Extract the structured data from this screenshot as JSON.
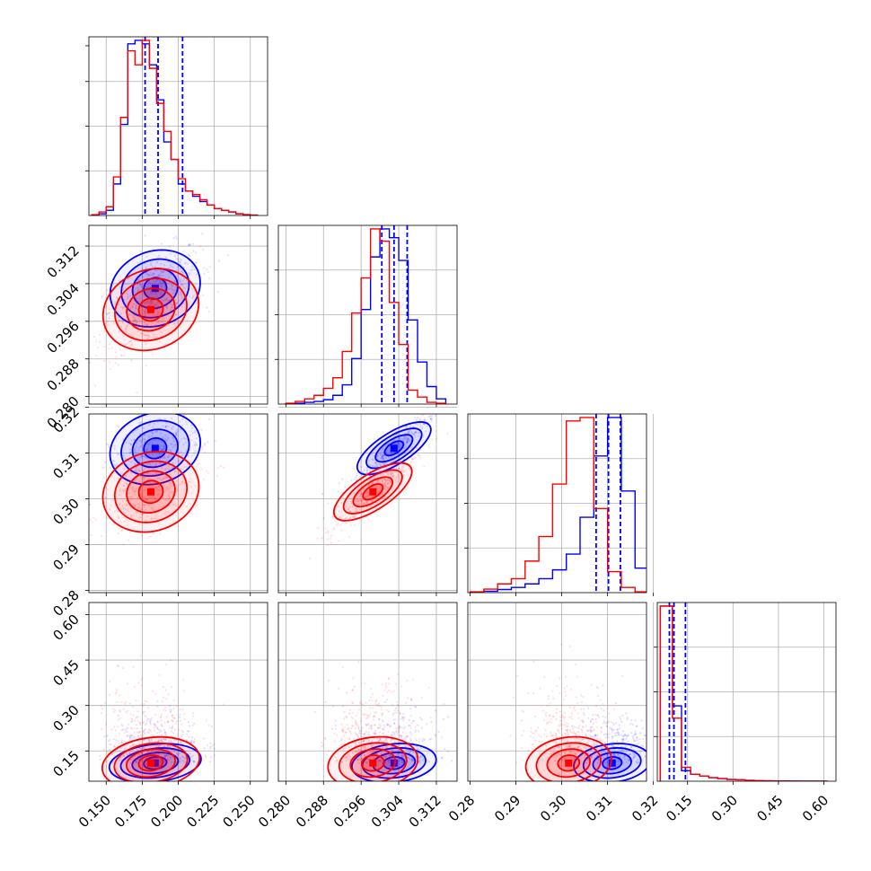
{
  "chart_data": {
    "type": "scatter",
    "title": "",
    "parameters": [
      {
        "ticks": [
          0.15,
          0.175,
          0.2,
          0.225,
          0.25
        ],
        "tick_labels": [
          "0.150",
          "0.175",
          "0.200",
          "0.225",
          "0.250"
        ],
        "range": [
          0.138,
          0.262
        ]
      },
      {
        "ticks": [
          0.28,
          0.288,
          0.296,
          0.304,
          0.312
        ],
        "tick_labels": [
          "0.280",
          "0.288",
          "0.296",
          "0.304",
          "0.312"
        ],
        "range": [
          0.2784,
          0.3164
        ]
      },
      {
        "ticks": [
          0.28,
          0.29,
          0.3,
          0.31,
          0.32
        ],
        "tick_labels": [
          "0.28",
          "0.29",
          "0.30",
          "0.31",
          "0.32"
        ],
        "range": [
          0.2795,
          0.3185
        ]
      },
      {
        "ticks": [
          0.15,
          0.3,
          0.45,
          0.6
        ],
        "tick_labels": [
          "0.15",
          "0.30",
          "0.45",
          "0.60"
        ],
        "range": [
          0.05,
          0.64
        ]
      }
    ],
    "series": [
      {
        "color": "#0000ff",
        "centers": [
          0.184,
          0.303,
          0.311,
          0.11
        ],
        "spreads": [
          0.016,
          0.0045,
          0.0042,
          0.03
        ],
        "quantiles": [
          [
            0.177,
            0.186,
            0.203
          ],
          [
            0.3004,
            0.303,
            0.3058
          ],
          [
            0.3075,
            0.3102,
            0.3128
          ],
          [
            0.09,
            0.105,
            0.143
          ]
        ],
        "histograms": [
          {
            "edges": [
              0.14,
              0.145,
              0.15,
              0.155,
              0.16,
              0.165,
              0.17,
              0.175,
              0.18,
              0.185,
              0.19,
              0.195,
              0.2,
              0.205,
              0.21,
              0.215,
              0.22,
              0.225,
              0.23,
              0.235,
              0.24,
              0.245,
              0.25,
              0.255
            ],
            "counts": [
              0.2,
              1,
              3,
              18,
              52,
              98,
              100,
              98,
              86,
              66,
              42,
              32,
              18,
              14,
              11,
              8,
              6,
              4,
              3,
              2,
              1,
              0.5,
              0.2
            ]
          },
          {
            "edges": [
              0.28,
              0.282,
              0.284,
              0.286,
              0.288,
              0.29,
              0.292,
              0.294,
              0.296,
              0.298,
              0.3,
              0.302,
              0.304,
              0.306,
              0.308,
              0.31,
              0.312,
              0.314
            ],
            "counts": [
              0.2,
              0.5,
              1,
              1.5,
              2.5,
              5,
              11,
              26,
              54,
              84,
              100,
              95,
              82,
              48,
              24,
              10,
              3
            ]
          },
          {
            "edges": [
              0.28,
              0.283,
              0.286,
              0.289,
              0.292,
              0.295,
              0.298,
              0.301,
              0.304,
              0.307,
              0.31,
              0.313,
              0.316,
              0.319
            ],
            "counts": [
              0.3,
              0.8,
              1.8,
              3,
              5,
              8,
              13,
              22,
              43,
              78,
              100,
              58,
              14
            ]
          },
          {
            "edges": [
              0.06,
              0.1,
              0.13,
              0.16,
              0.19,
              0.22,
              0.25,
              0.28,
              0.31,
              0.34,
              0.37,
              0.4,
              0.43,
              0.46,
              0.49,
              0.52,
              0.55,
              0.58,
              0.61
            ],
            "counts": [
              100,
              43,
              6,
              4,
              3,
              2,
              1.5,
              1,
              0.8,
              0.5,
              0.3,
              0.2,
              0.1,
              0.1,
              0.05,
              0.02,
              0.01,
              0.01
            ]
          }
        ]
      },
      {
        "color": "#ff0000",
        "centers": [
          0.181,
          0.2985,
          0.3015,
          0.11
        ],
        "spreads": [
          0.017,
          0.0048,
          0.0047,
          0.05
        ],
        "histograms": [
          {
            "edges": [
              0.14,
              0.145,
              0.15,
              0.155,
              0.16,
              0.165,
              0.17,
              0.175,
              0.18,
              0.185,
              0.19,
              0.195,
              0.2,
              0.205,
              0.21,
              0.215,
              0.22,
              0.225,
              0.23,
              0.235,
              0.24,
              0.245,
              0.25,
              0.255
            ],
            "counts": [
              0.5,
              2,
              5,
              22,
              56,
              94,
              86,
              100,
              84,
              64,
              48,
              32,
              21,
              14,
              12,
              9,
              6,
              4,
              3,
              2,
              1,
              0.5,
              0.2
            ]
          },
          {
            "edges": [
              0.28,
              0.282,
              0.284,
              0.286,
              0.288,
              0.29,
              0.292,
              0.294,
              0.296,
              0.298,
              0.3,
              0.302,
              0.304,
              0.306,
              0.308,
              0.31,
              0.312,
              0.314
            ],
            "counts": [
              0.5,
              1.5,
              3,
              5,
              9,
              15,
              30,
              52,
              72,
              100,
              93,
              58,
              34,
              8,
              4,
              1,
              0.5
            ]
          },
          {
            "edges": [
              0.28,
              0.283,
              0.286,
              0.289,
              0.292,
              0.295,
              0.298,
              0.301,
              0.304,
              0.307,
              0.31,
              0.313,
              0.316,
              0.319
            ],
            "counts": [
              0.5,
              2,
              5,
              8,
              18,
              32,
              62,
              98,
              100,
              48,
              12,
              3,
              0.5
            ]
          },
          {
            "edges": [
              0.06,
              0.1,
              0.13,
              0.16,
              0.19,
              0.22,
              0.25,
              0.28,
              0.31,
              0.34,
              0.37,
              0.4,
              0.43,
              0.46,
              0.49,
              0.52,
              0.55,
              0.58,
              0.61
            ],
            "counts": [
              100,
              36,
              8,
              4,
              3,
              2,
              1.5,
              1,
              0.8,
              0.5,
              0.3,
              0.2,
              0.15,
              0.1,
              0.06,
              0.03,
              0.02,
              0.01
            ]
          }
        ]
      }
    ]
  }
}
